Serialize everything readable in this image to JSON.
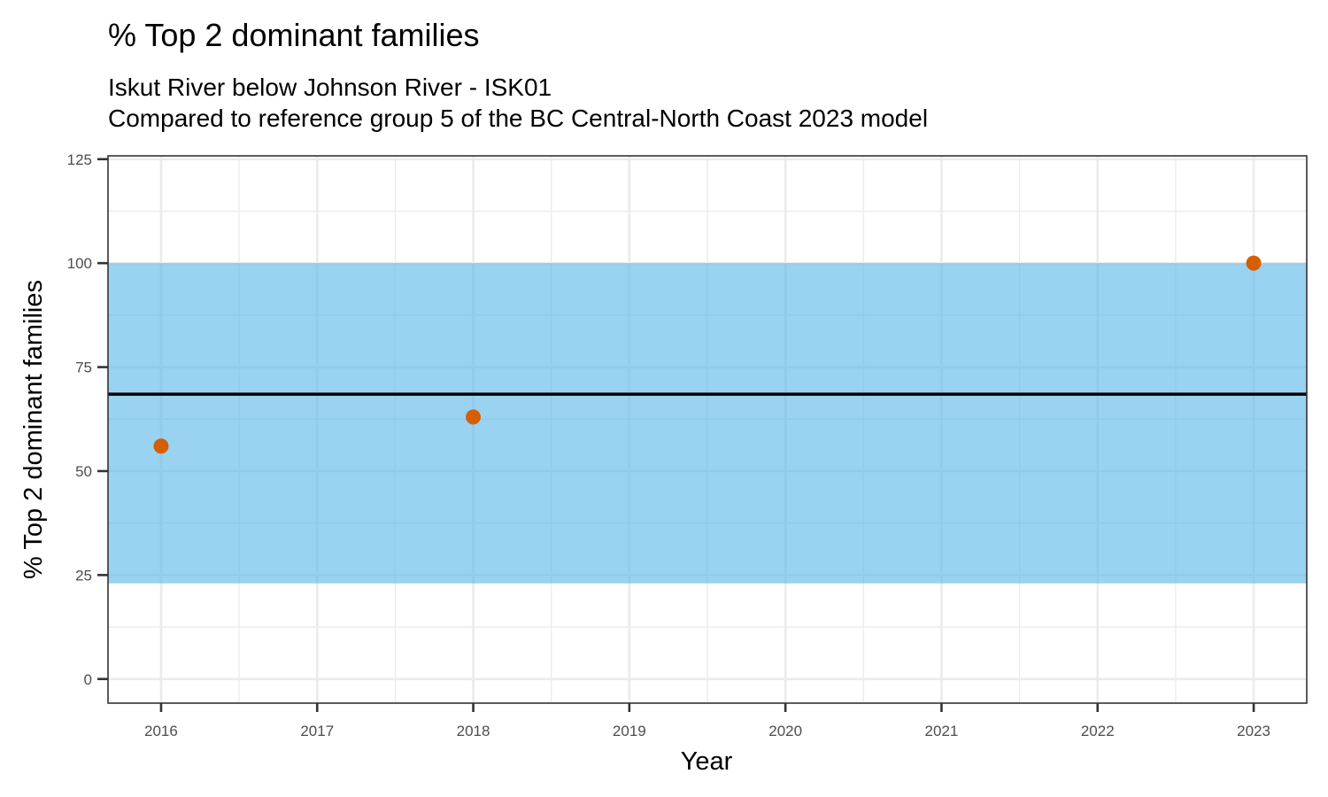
{
  "chart_data": {
    "type": "scatter",
    "title": "% Top 2 dominant families",
    "subtitle_lines": [
      "Iskut River below Johnson River - ISK01",
      "Compared to reference group 5 of the BC Central-North Coast 2023 model"
    ],
    "xlabel": "Year",
    "ylabel": "% Top 2 dominant families",
    "x_ticks": [
      "2016",
      "2017",
      "2018",
      "2019",
      "2020",
      "2021",
      "2022",
      "2023"
    ],
    "y_ticks": [
      0,
      25,
      50,
      75,
      100,
      125
    ],
    "xlim": [
      2015.66,
      2023.34
    ],
    "ylim": [
      -5.8,
      125.8
    ],
    "reference_band": {
      "lower": 23,
      "upper": 100,
      "color": "#56B4E9"
    },
    "reference_line": {
      "value": 68.5,
      "color": "#000000"
    },
    "points": [
      {
        "x": 2016,
        "y": 56
      },
      {
        "x": 2018,
        "y": 63
      },
      {
        "x": 2023,
        "y": 100
      }
    ],
    "point_color": "#D55E00",
    "grid": true
  }
}
